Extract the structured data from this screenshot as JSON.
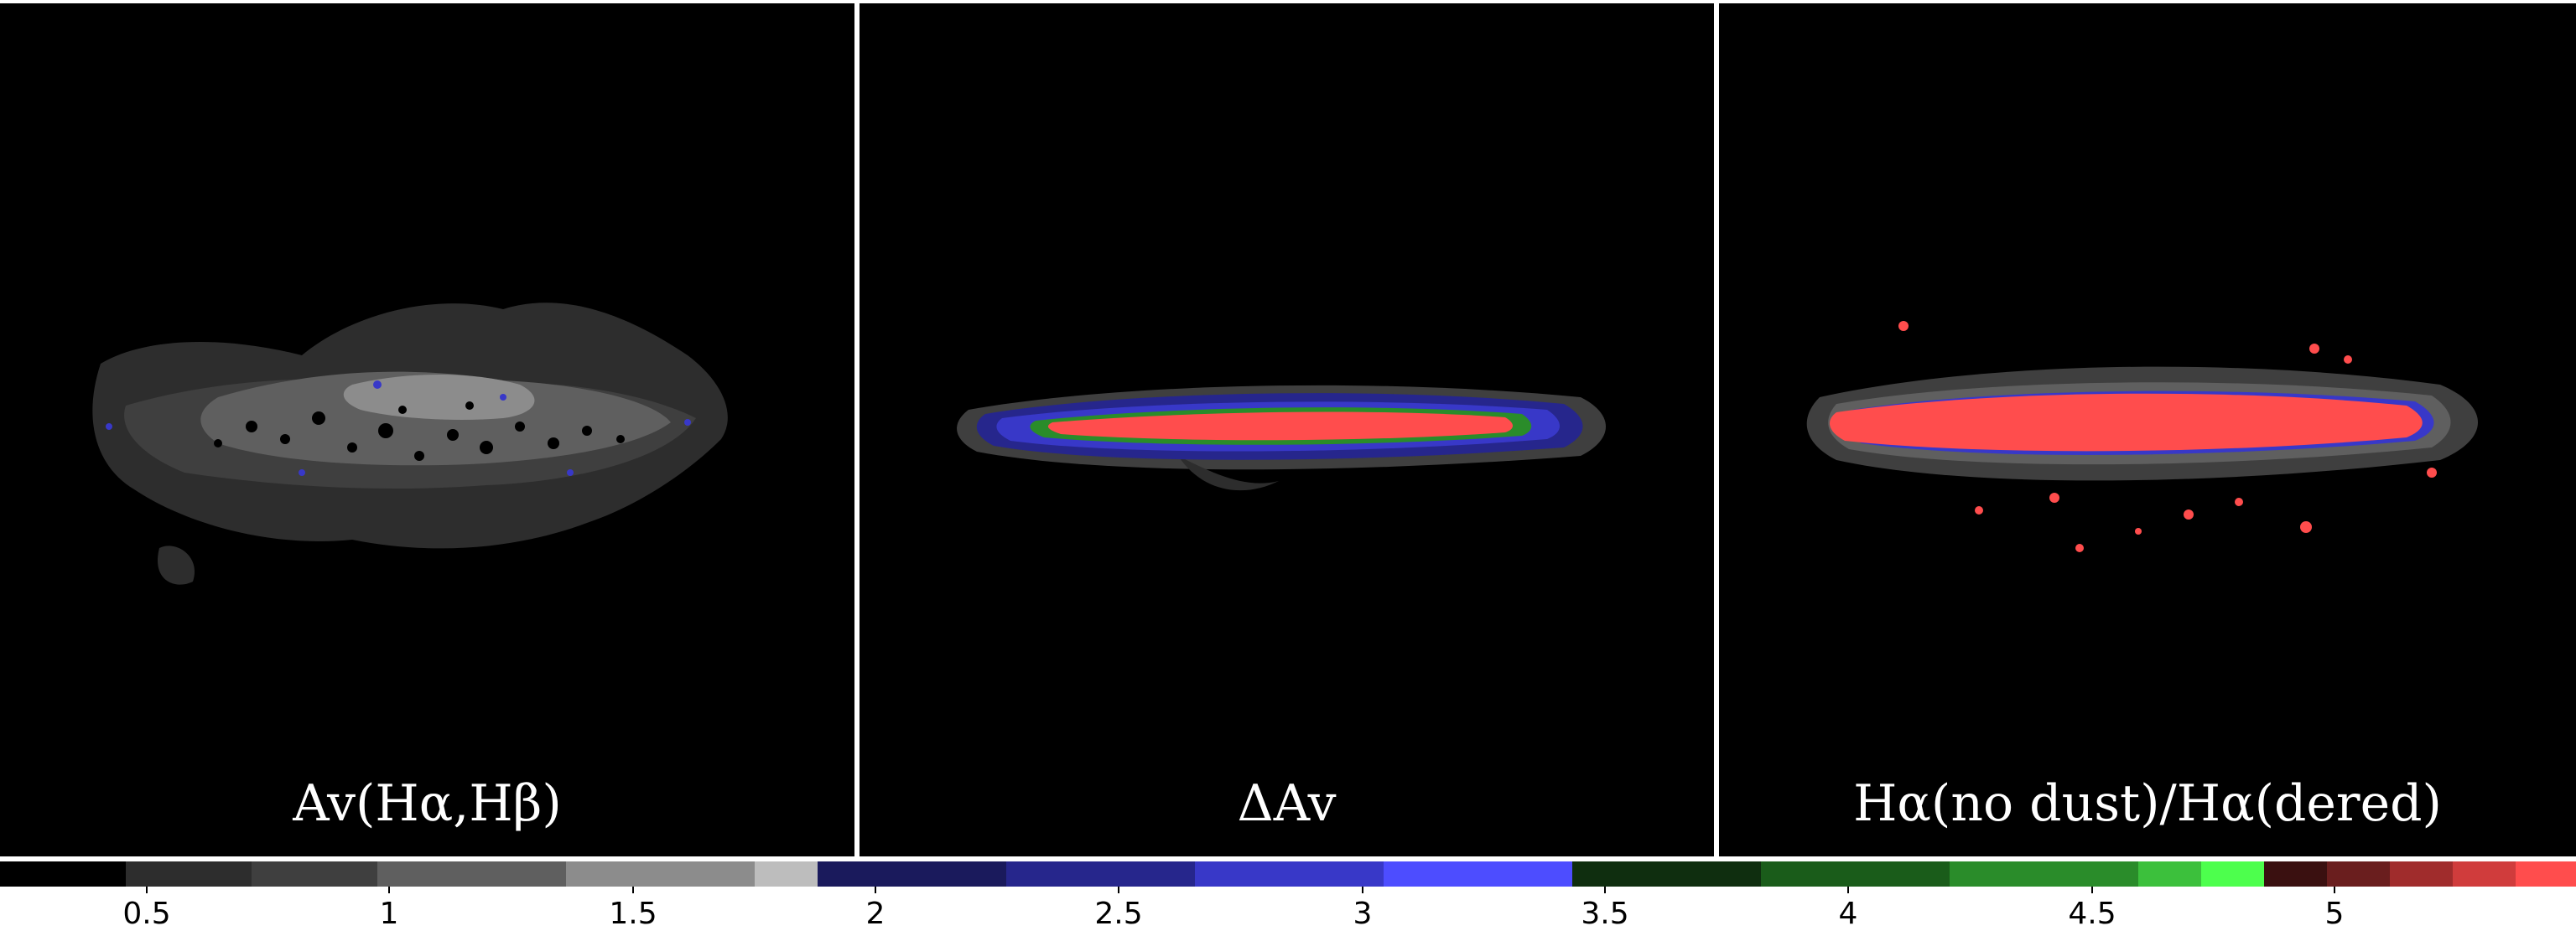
{
  "panels": [
    {
      "label": "Av(Hα,Hβ)"
    },
    {
      "label": "ΔAv"
    },
    {
      "label": "Hα(no dust)/Hα(dered)"
    }
  ],
  "colorbar": {
    "tick_labels": [
      "0.5",
      "1",
      "1.5",
      "2",
      "2.5",
      "3",
      "3.5",
      "4",
      "4.5",
      "5"
    ],
    "colors": {
      "gray": [
        "#000000",
        "#2d2d2d",
        "#3f3f3f",
        "#5f5f5f",
        "#8c8c8c",
        "#bdbdbd"
      ],
      "blue": [
        "#1a1a5c",
        "#26268c",
        "#3838c8",
        "#4d4dff"
      ],
      "green": [
        "#0f2e0f",
        "#1a5c1a",
        "#2a8c2a",
        "#3cc03c",
        "#4dff4d"
      ],
      "red": [
        "#3a1010",
        "#6a1e1e",
        "#a02c2c",
        "#d03c3c",
        "#ff4d4d"
      ]
    }
  }
}
